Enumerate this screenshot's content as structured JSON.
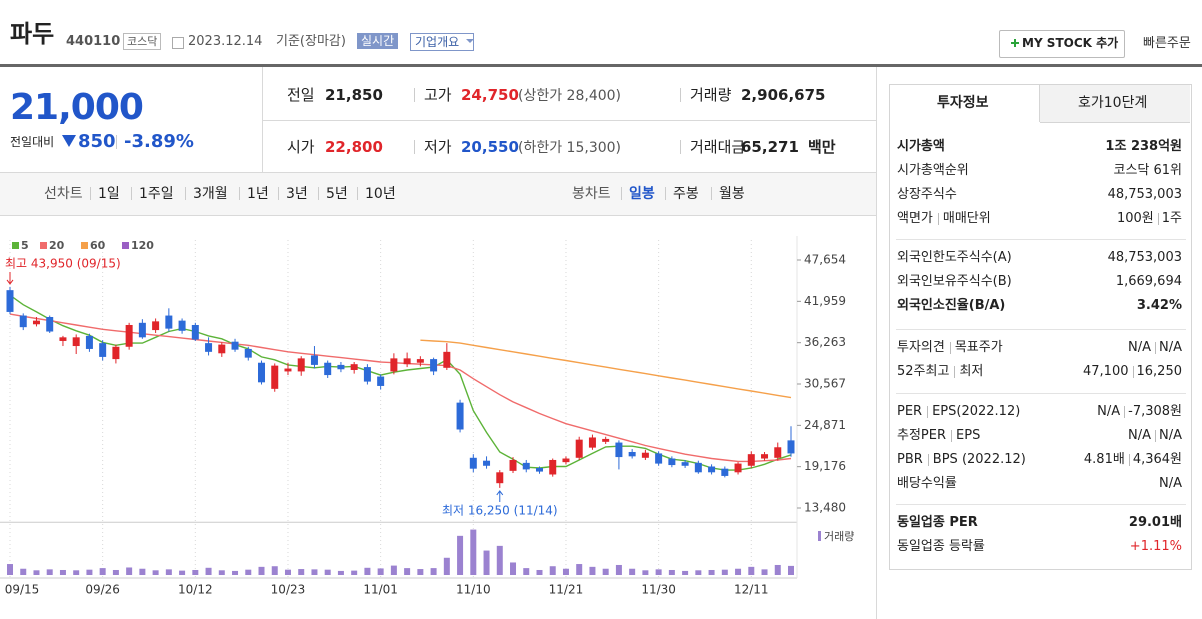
{
  "header": {
    "name": "파두",
    "code": "440110",
    "market": "코스닥",
    "date": "2023.12.14",
    "basis": "기준(장마감)",
    "realtime": "실시간",
    "company": "기업개요",
    "mystock": "MY STOCK 추가",
    "quick": "빠른주문"
  },
  "price": {
    "current": "21,000",
    "change_label": "전일대비",
    "change": "850",
    "rate": "-3.89%"
  },
  "quote": {
    "rows": [
      [
        {
          "label": "전일",
          "value": "21,850"
        },
        {
          "label": "고가",
          "value": "24,750",
          "limit": "(상한가 28,400)"
        },
        {
          "label": "거래량",
          "value": "2,906,675"
        }
      ],
      [
        {
          "label": "시가",
          "value": "22,800"
        },
        {
          "label": "저가",
          "value": "20,550",
          "limit": "(하한가 15,300)"
        },
        {
          "label": "거래대금",
          "value": "65,271",
          "unit": "백만"
        }
      ]
    ]
  },
  "tabs": {
    "line_label": "선차트",
    "line_periods": [
      "1일",
      "1주일",
      "3개월",
      "1년",
      "3년",
      "5년",
      "10년"
    ],
    "candle_label": "봉차트",
    "candle_periods": [
      "일봉",
      "주봉",
      "월봉"
    ]
  },
  "chart_data": {
    "type": "candlestick",
    "categories": [
      "09/15",
      null,
      null,
      null,
      null,
      null,
      null,
      "09/26",
      null,
      null,
      null,
      null,
      null,
      null,
      "10/12",
      null,
      null,
      null,
      null,
      null,
      null,
      "10/23",
      null,
      null,
      null,
      null,
      null,
      null,
      "11/01",
      null,
      null,
      null,
      null,
      null,
      null,
      "11/10",
      null,
      null,
      null,
      null,
      null,
      null,
      "11/21",
      null,
      null,
      null,
      null,
      null,
      null,
      "11/30",
      null,
      null,
      null,
      null,
      null,
      null,
      "12/11",
      null,
      null,
      null
    ],
    "open": [
      43500,
      40000,
      38800,
      39800,
      36500,
      35800,
      37200,
      36200,
      34000,
      35700,
      39000,
      38000,
      40000,
      39300,
      38700,
      36200,
      34800,
      36400,
      35400,
      33500,
      29900,
      32300,
      32300,
      34500,
      33500,
      33200,
      32500,
      32900,
      31600,
      32300,
      33300,
      33500,
      34000,
      32800,
      28000,
      20400,
      20000,
      16900,
      18600,
      19700,
      19000,
      18100,
      19800,
      20400,
      21800,
      22600,
      22500,
      21200,
      20400,
      21000,
      20300,
      19800,
      19700,
      19200,
      18900,
      18400,
      19300,
      20300,
      20400,
      22800
    ],
    "high": [
      43950,
      40300,
      39800,
      40000,
      37200,
      37400,
      37500,
      36600,
      36000,
      39000,
      39500,
      39600,
      41000,
      39600,
      39000,
      37000,
      36300,
      36800,
      35700,
      33800,
      33400,
      33500,
      34400,
      35800,
      33800,
      33600,
      33600,
      33300,
      31900,
      34800,
      34900,
      34400,
      34200,
      36200,
      28400,
      20900,
      20600,
      18700,
      20500,
      20100,
      19200,
      20300,
      20600,
      23300,
      23600,
      23300,
      22800,
      21600,
      21500,
      21300,
      20600,
      20100,
      20000,
      19500,
      19200,
      19800,
      21300,
      21200,
      22500,
      24750
    ],
    "low": [
      40200,
      38000,
      38500,
      37600,
      35800,
      34700,
      35000,
      33800,
      33400,
      35300,
      36800,
      37600,
      37800,
      37500,
      36500,
      34500,
      34300,
      35000,
      33800,
      30500,
      29500,
      31800,
      31700,
      32700,
      31400,
      32200,
      32000,
      30500,
      29800,
      31900,
      32900,
      33000,
      31800,
      32500,
      23900,
      18400,
      18900,
      16250,
      18300,
      18400,
      18200,
      17800,
      19500,
      20100,
      21500,
      22300,
      18800,
      20300,
      20100,
      19300,
      19100,
      19000,
      18200,
      18100,
      17700,
      18100,
      19000,
      20000,
      20000,
      20550
    ],
    "close": [
      40500,
      38400,
      39300,
      37800,
      37000,
      37000,
      35400,
      34300,
      35700,
      38700,
      37000,
      39200,
      38200,
      37900,
      36700,
      35000,
      36000,
      35300,
      34200,
      30800,
      33100,
      32700,
      34100,
      33200,
      31800,
      32600,
      33300,
      30900,
      30300,
      34100,
      34100,
      34000,
      32300,
      35000,
      24300,
      18900,
      19300,
      18400,
      20100,
      18800,
      18500,
      20100,
      20300,
      22900,
      23200,
      23000,
      20500,
      20600,
      21100,
      19600,
      19400,
      19300,
      18400,
      18400,
      17900,
      19600,
      20900,
      20900,
      21850,
      21000
    ],
    "up_color": "#e0252a",
    "down_color": "#2c6ad8",
    "series": [
      {
        "name": "5",
        "color": "#5cb338",
        "values": [
          42800,
          41500,
          40500,
          39500,
          38600,
          37900,
          37300,
          36300,
          35900,
          36200,
          36200,
          37000,
          37800,
          38200,
          37800,
          37200,
          36800,
          36000,
          35400,
          34300,
          33900,
          33200,
          33000,
          32800,
          33000,
          32900,
          33000,
          32400,
          31800,
          32200,
          32500,
          32700,
          32900,
          33900,
          31900,
          26900,
          23900,
          21200,
          20200,
          19100,
          19000,
          19200,
          19200,
          20100,
          21000,
          21900,
          22000,
          22000,
          21700,
          20900,
          20200,
          20000,
          19600,
          19000,
          18700,
          18700,
          19000,
          19500,
          20200,
          20800
        ]
      },
      {
        "name": "20",
        "color": "#f06b6b",
        "values": [
          40200,
          39900,
          39600,
          39300,
          39000,
          38700,
          38400,
          38100,
          37900,
          37700,
          37500,
          37300,
          37100,
          36900,
          36700,
          36500,
          36300,
          36100,
          35900,
          35600,
          35300,
          35000,
          34800,
          34600,
          34400,
          34200,
          34000,
          33800,
          33600,
          33500,
          33400,
          33300,
          33200,
          33100,
          32500,
          31300,
          30200,
          29100,
          28100,
          27300,
          26500,
          25800,
          25100,
          24600,
          24100,
          23600,
          23100,
          22600,
          22100,
          21700,
          21300,
          20900,
          20600,
          20300,
          20100,
          19900,
          19900,
          20000,
          20100,
          20300
        ]
      },
      {
        "name": "60",
        "color": "#f5a04a",
        "values": [
          null,
          null,
          null,
          null,
          null,
          null,
          null,
          null,
          null,
          null,
          null,
          null,
          null,
          null,
          null,
          null,
          null,
          null,
          null,
          null,
          null,
          null,
          null,
          null,
          null,
          null,
          null,
          null,
          null,
          null,
          null,
          36600,
          36500,
          36400,
          36200,
          35900,
          35600,
          35300,
          35000,
          34700,
          34400,
          34100,
          33800,
          33500,
          33200,
          32900,
          32600,
          32300,
          32000,
          31700,
          31400,
          31100,
          30800,
          30500,
          30200,
          29900,
          29600,
          29300,
          29000,
          28700
        ]
      },
      {
        "name": "120",
        "color": "#9a5fc4",
        "values": [
          null,
          null,
          null,
          null,
          null,
          null,
          null,
          null,
          null,
          null,
          null,
          null,
          null,
          null,
          null,
          null,
          null,
          null,
          null,
          null,
          null,
          null,
          null,
          null,
          null,
          null,
          null,
          null,
          null,
          null,
          null,
          null,
          null,
          null,
          null,
          null,
          null,
          null,
          null,
          null,
          null,
          null,
          null,
          null,
          null,
          null,
          null,
          null,
          null,
          null,
          null,
          null,
          null,
          null,
          null,
          null,
          null,
          null,
          null,
          null
        ]
      }
    ],
    "volume": {
      "name": "거래량",
      "axis": "y2",
      "color": "#9b82d0",
      "values": [
        3500000,
        2000000,
        1500000,
        1800000,
        1600000,
        1500000,
        1700000,
        2200000,
        1600000,
        2400000,
        2000000,
        1500000,
        1800000,
        1400000,
        1600000,
        2300000,
        1500000,
        1300000,
        1700000,
        2600000,
        2800000,
        1700000,
        1900000,
        1800000,
        1700000,
        1300000,
        1400000,
        2300000,
        2100000,
        3000000,
        2200000,
        1900000,
        2200000,
        5500000,
        12500000,
        14500000,
        7800000,
        9300000,
        4000000,
        2200000,
        1600000,
        2800000,
        2000000,
        3500000,
        2600000,
        2000000,
        3200000,
        2000000,
        1500000,
        1800000,
        1600000,
        1300000,
        1500000,
        1600000,
        1700000,
        2000000,
        2600000,
        1800000,
        3200000,
        2906675
      ]
    },
    "ylim": [
      11800,
      48400
    ],
    "yticks": [
      {
        "value": 13480,
        "label": "13,480"
      },
      {
        "value": 19176,
        "label": "19,176"
      },
      {
        "value": 24871,
        "label": "24,871"
      },
      {
        "value": 30567,
        "label": "30,567"
      },
      {
        "value": 36263,
        "label": "36,263"
      },
      {
        "value": 41959,
        "label": "41,959"
      },
      {
        "value": 47654,
        "label": "47,654"
      }
    ],
    "y2lim": [
      0,
      15000000
    ],
    "annotations": [
      {
        "text": "최고 43,950 (09/15)",
        "index": 0,
        "color": "#e0252a"
      },
      {
        "text": "최저 16,250 (11/14)",
        "index": 37,
        "color": "#2c6ad8"
      }
    ]
  },
  "side": {
    "tabs": [
      "투자정보",
      "호가10단계"
    ],
    "groups": [
      [
        {
          "label": [
            "시가총액"
          ],
          "value": [
            "1조 238억원"
          ],
          "bold": true
        },
        {
          "label": [
            "시가총액순위"
          ],
          "value": [
            "코스닥 61위"
          ]
        },
        {
          "label": [
            "상장주식수"
          ],
          "value": [
            "48,753,003"
          ]
        },
        {
          "label": [
            "액면가",
            "매매단위"
          ],
          "value": [
            "100원",
            "1주"
          ]
        }
      ],
      [
        {
          "label": [
            "외국인한도주식수(A)"
          ],
          "value": [
            "48,753,003"
          ]
        },
        {
          "label": [
            "외국인보유주식수(B)"
          ],
          "value": [
            "1,669,694"
          ]
        },
        {
          "label": [
            "외국인소진율(B/A)"
          ],
          "value": [
            "3.42%"
          ],
          "bold": true
        }
      ],
      [
        {
          "label": [
            "투자의견",
            "목표주가"
          ],
          "value": [
            "N/A",
            "N/A"
          ]
        },
        {
          "label": [
            "52주최고",
            "최저"
          ],
          "value": [
            "47,100",
            "16,250"
          ]
        }
      ],
      [
        {
          "label": [
            "PER",
            "EPS(2022.12)"
          ],
          "value": [
            "N/A",
            "-7,308원"
          ]
        },
        {
          "label": [
            "추정PER",
            "EPS"
          ],
          "value": [
            "N/A",
            "N/A"
          ]
        },
        {
          "label": [
            "PBR",
            "BPS (2022.12)"
          ],
          "value": [
            "4.81배",
            "4,364원"
          ]
        },
        {
          "label": [
            "배당수익률"
          ],
          "value": [
            "N/A"
          ]
        }
      ],
      [
        {
          "label": [
            "동일업종 PER"
          ],
          "value": [
            "29.01배"
          ],
          "bold": true
        },
        {
          "label": [
            "동일업종 등락률"
          ],
          "value": [
            "+1.11%"
          ],
          "color": "#e0252a"
        }
      ]
    ]
  }
}
